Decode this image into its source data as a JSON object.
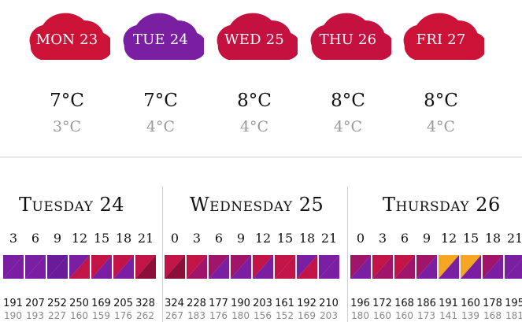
{
  "colors": {
    "red": "#c8102e",
    "crimson": "#c31447",
    "purple": "#7a1fa2",
    "violet": "#6a1b9a",
    "maroon": "#8b1038",
    "orange": "#f5a623",
    "magenta": "#a0146a",
    "text_muted": "#9a9a9a"
  },
  "forecast": [
    {
      "label": "MON 23",
      "high": "7°C",
      "low": "3°C",
      "color": "#cc1236"
    },
    {
      "label": "TUE 24",
      "high": "7°C",
      "low": "4°C",
      "color": "#7b1fa2"
    },
    {
      "label": "WED 25",
      "high": "8°C",
      "low": "4°C",
      "color": "#c4113f"
    },
    {
      "label": "THU 26",
      "high": "8°C",
      "low": "4°C",
      "color": "#c4113f"
    },
    {
      "label": "FRI 27",
      "high": "8°C",
      "low": "4°C",
      "color": "#cc1236"
    }
  ],
  "panels": [
    {
      "title": "Tuesday 24",
      "hours": [
        "3",
        "6",
        "9",
        "12",
        "15",
        "18",
        "21"
      ],
      "swatches": [
        [
          "#7a1fa2",
          "#7a1fa2"
        ],
        [
          "#7a1fa2",
          "#7a1fa2"
        ],
        [
          "#6a1b9a",
          "#6a1b9a"
        ],
        [
          "#7a1fa2",
          "#c31447"
        ],
        [
          "#c31447",
          "#7a1fa2"
        ],
        [
          "#c31447",
          "#7a1fa2"
        ],
        [
          "#c31447",
          "#8b1038"
        ]
      ],
      "row_a": [
        "191",
        "207",
        "252",
        "250",
        "169",
        "205",
        "328"
      ],
      "row_b": [
        "190",
        "193",
        "227",
        "160",
        "159",
        "176",
        "262"
      ]
    },
    {
      "title": "Wednesday 25",
      "hours": [
        "0",
        "3",
        "6",
        "9",
        "12",
        "15",
        "18",
        "21"
      ],
      "swatches": [
        [
          "#c31447",
          "#8b1038"
        ],
        [
          "#c31447",
          "#a0146a"
        ],
        [
          "#a0146a",
          "#7a1fa2"
        ],
        [
          "#a0146a",
          "#7a1fa2"
        ],
        [
          "#c31447",
          "#7a1fa2"
        ],
        [
          "#c31447",
          "#c31447"
        ],
        [
          "#7a1fa2",
          "#c31447"
        ],
        [
          "#7a1fa2",
          "#7a1fa2"
        ]
      ],
      "row_a": [
        "324",
        "228",
        "177",
        "190",
        "203",
        "161",
        "192",
        "210"
      ],
      "row_b": [
        "267",
        "183",
        "176",
        "180",
        "156",
        "152",
        "169",
        "203"
      ]
    },
    {
      "title": "Thursday 26",
      "hours": [
        "0",
        "3",
        "6",
        "9",
        "12",
        "15",
        "18",
        "21"
      ],
      "swatches": [
        [
          "#a0146a",
          "#7a1fa2"
        ],
        [
          "#c31447",
          "#a0146a"
        ],
        [
          "#c31447",
          "#a0146a"
        ],
        [
          "#a0146a",
          "#7a1fa2"
        ],
        [
          "#f5a623",
          "#7a1fa2"
        ],
        [
          "#f5a623",
          "#7a1fa2"
        ],
        [
          "#a0146a",
          "#7a1fa2"
        ],
        [
          "#7a1fa2",
          "#7a1fa2"
        ]
      ],
      "row_a": [
        "196",
        "172",
        "168",
        "186",
        "191",
        "160",
        "178",
        "195"
      ],
      "row_b": [
        "180",
        "160",
        "160",
        "173",
        "141",
        "139",
        "168",
        "181"
      ]
    }
  ]
}
